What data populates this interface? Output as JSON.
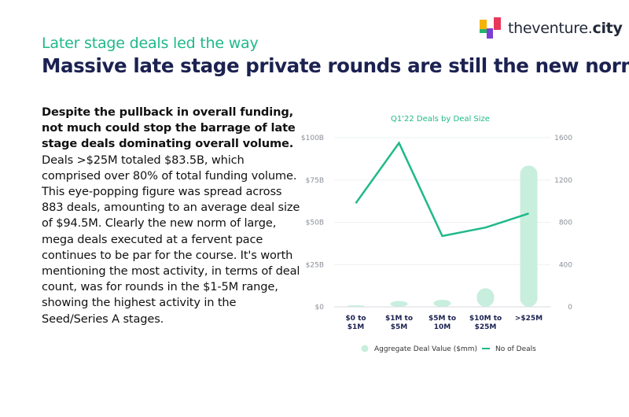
{
  "header": {
    "subtitle": "Later stage deals led the way",
    "title": "Massive late stage private rounds are still the new norm"
  },
  "logo": {
    "text_light": "theventure.",
    "text_bold": "city",
    "colors": [
      "#f5b400",
      "#e8395a",
      "#7b3fd4",
      "#23b36f"
    ]
  },
  "body": {
    "lead": "Despite the pullback in overall funding, not much could stop the barrage of late stage deals dominating overall volume.",
    "rest": " Deals >$25M totaled $83.5B, which comprised over 80% of total funding volume. This eye-popping figure was spread across 883 deals, amounting to an average deal size of $94.5M. Clearly the new norm of large, mega deals executed at a fervent pace continues to be par for the course. It's worth mentioning the most activity, in terms of deal count, was for rounds in the $1-5M range, showing the highest activity in the Seed/Series A stages."
  },
  "chart_data": {
    "type": "bar",
    "title": "Q1'22 Deals by Deal Size",
    "categories": [
      "$0 to $1M",
      "$1M to $5M",
      "$5M to 10M",
      "$10M to $25M",
      ">$25M"
    ],
    "series": [
      {
        "name": "Aggregate Deal Value ($mm)",
        "type": "bar",
        "axis": "left",
        "color": "#c8eedd",
        "values": [
          0.6,
          3.5,
          4.2,
          11.0,
          83.5
        ]
      },
      {
        "name": "No of Deals",
        "type": "line",
        "axis": "right",
        "color": "#1fb98a",
        "values": [
          980,
          1550,
          670,
          750,
          883
        ]
      }
    ],
    "y_left": {
      "ticks": [
        "$0",
        "$25B",
        "$50B",
        "$75B",
        "$100B"
      ],
      "min": 0,
      "max": 100
    },
    "y_right": {
      "ticks": [
        "0",
        "400",
        "800",
        "1200",
        "1600"
      ],
      "min": 0,
      "max": 1600
    },
    "grid": true,
    "legend": "bottom"
  }
}
